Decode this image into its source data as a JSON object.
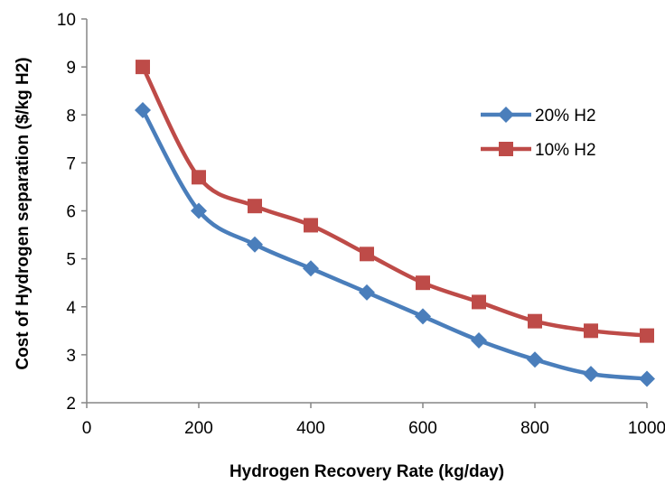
{
  "chart_data": {
    "type": "line",
    "title": "",
    "xlabel": "Hydrogen Recovery Rate (kg/day)",
    "ylabel": "Cost of Hydrogen separation ($/kg H2)",
    "xlim": [
      0,
      1000
    ],
    "ylim": [
      2,
      10
    ],
    "x_ticks": [
      0,
      200,
      400,
      600,
      800,
      1000
    ],
    "y_ticks": [
      2,
      3,
      4,
      5,
      6,
      7,
      8,
      9,
      10
    ],
    "grid": false,
    "legend_position": "top-right",
    "series": [
      {
        "name": "20% H2",
        "color": "#4A7EBB",
        "marker": "diamond",
        "x": [
          100,
          200,
          300,
          400,
          500,
          600,
          700,
          800,
          900,
          1000
        ],
        "y": [
          8.1,
          6.0,
          5.3,
          4.8,
          4.3,
          3.8,
          3.3,
          2.9,
          2.6,
          2.5
        ]
      },
      {
        "name": "10% H2",
        "color": "#BE4B48",
        "marker": "square",
        "x": [
          100,
          200,
          300,
          400,
          500,
          600,
          700,
          800,
          900,
          1000
        ],
        "y": [
          9.0,
          6.7,
          6.1,
          5.7,
          5.1,
          4.5,
          4.1,
          3.7,
          3.5,
          3.4
        ]
      }
    ]
  }
}
